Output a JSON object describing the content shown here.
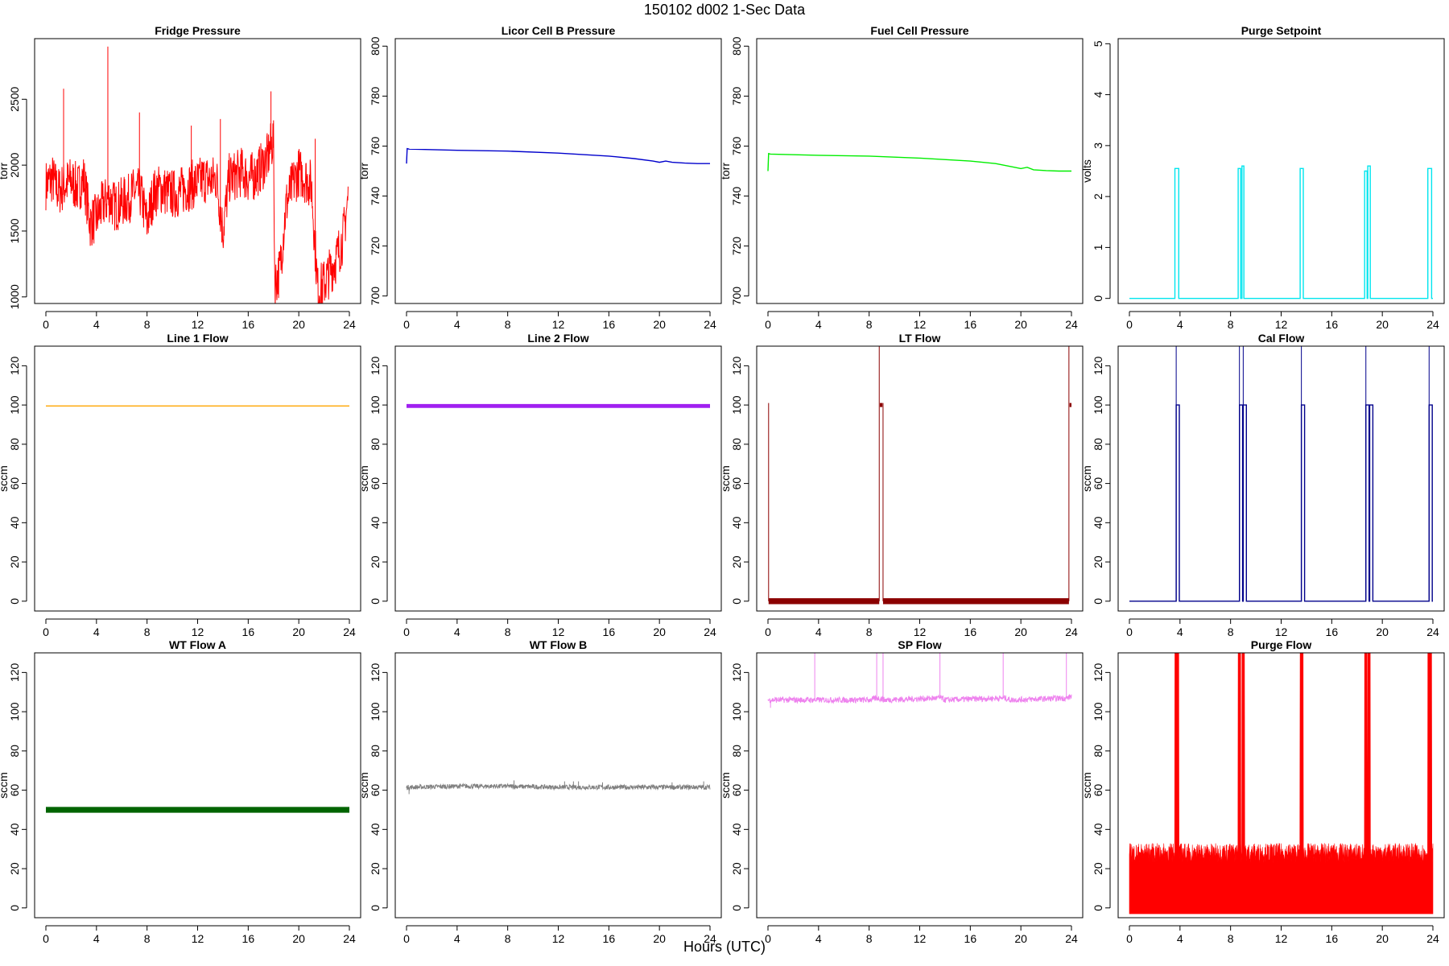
{
  "figure": {
    "title": "150102   d002   1-Sec Data",
    "xlabel": "Hours (UTC)"
  },
  "chart_data": [
    {
      "type": "line",
      "title": "Fridge Pressure",
      "ylabel": "torr",
      "color": "#ff0000",
      "xlim": [
        0,
        24
      ],
      "ylim": [
        950,
        2960
      ],
      "xticks": [
        0,
        4,
        8,
        12,
        16,
        20,
        24
      ],
      "yticks": [
        1000,
        1500,
        2000,
        2500
      ],
      "style": "noisy",
      "x": [
        0,
        0.5,
        1,
        1.5,
        2,
        2.5,
        3,
        3.5,
        4,
        4.5,
        5,
        5.5,
        6,
        6.5,
        7,
        7.5,
        8,
        8.5,
        9,
        9.5,
        10,
        10.5,
        11,
        11.5,
        12,
        12.5,
        13,
        13.5,
        14,
        14.5,
        15,
        15.5,
        16,
        16.5,
        17,
        17.5,
        18,
        18.1,
        18.5,
        19,
        19.5,
        20,
        20.5,
        21,
        21.5,
        22,
        22.5,
        23,
        23.5,
        23.9
      ],
      "values": [
        1850,
        1900,
        1800,
        1850,
        1880,
        1820,
        1900,
        1560,
        1600,
        1700,
        1750,
        1680,
        1720,
        1740,
        1800,
        1780,
        1560,
        1780,
        1820,
        1800,
        1780,
        1790,
        1820,
        1850,
        1860,
        1900,
        1880,
        1900,
        1500,
        1900,
        1920,
        1950,
        1900,
        1920,
        1980,
        2050,
        2200,
        1100,
        1200,
        1700,
        1850,
        1950,
        1900,
        1850,
        1050,
        1100,
        1200,
        1300,
        1450,
        1750
      ],
      "spikes": [
        [
          1.4,
          2580
        ],
        [
          4.9,
          2900
        ],
        [
          7.4,
          2400
        ],
        [
          11.5,
          2300
        ],
        [
          13.8,
          2350
        ],
        [
          17.8,
          2560
        ],
        [
          21.3,
          2200
        ]
      ]
    },
    {
      "type": "line",
      "title": "Licor Cell B Pressure",
      "ylabel": "torr",
      "color": "#0000cc",
      "xlim": [
        0,
        24
      ],
      "ylim": [
        697,
        803
      ],
      "xticks": [
        0,
        4,
        8,
        12,
        16,
        20,
        24
      ],
      "yticks": [
        700,
        720,
        740,
        760,
        780,
        800
      ],
      "style": "line",
      "x": [
        0,
        0.05,
        0.2,
        4,
        8,
        12,
        16,
        18,
        19.5,
        20,
        20.5,
        21,
        22,
        23,
        24
      ],
      "values": [
        753,
        759,
        758.8,
        758.3,
        758,
        757.2,
        756,
        755,
        754,
        753.5,
        754,
        753.5,
        753.2,
        753,
        753
      ]
    },
    {
      "type": "line",
      "title": "Fuel Cell Pressure",
      "ylabel": "torr",
      "color": "#00ee00",
      "xlim": [
        0,
        24
      ],
      "ylim": [
        697,
        803
      ],
      "xticks": [
        0,
        4,
        8,
        12,
        16,
        20,
        24
      ],
      "yticks": [
        700,
        720,
        740,
        760,
        780,
        800
      ],
      "style": "line",
      "x": [
        0,
        0.05,
        0.2,
        4,
        8,
        12,
        16,
        18,
        19.5,
        20,
        20.5,
        21,
        22,
        23,
        24
      ],
      "values": [
        750,
        757,
        756.8,
        756.3,
        756,
        755.2,
        754,
        753,
        751.5,
        751,
        751.5,
        750.5,
        750.2,
        750,
        750
      ]
    },
    {
      "type": "line",
      "title": "Purge Setpoint",
      "ylabel": "volts",
      "color": "#00e5ee",
      "xlim": [
        0,
        24
      ],
      "ylim": [
        -0.1,
        5.1
      ],
      "xticks": [
        0,
        4,
        8,
        12,
        16,
        20,
        24
      ],
      "yticks": [
        0,
        1,
        2,
        3,
        4,
        5
      ],
      "style": "pulses",
      "baseline": 0,
      "pulses": [
        [
          3.6,
          3.9,
          2.55
        ],
        [
          8.6,
          8.8,
          2.55
        ],
        [
          8.9,
          9.05,
          2.6
        ],
        [
          13.5,
          13.75,
          2.55
        ],
        [
          18.6,
          18.8,
          2.5
        ],
        [
          18.85,
          19.05,
          2.6
        ],
        [
          23.6,
          23.9,
          2.55
        ]
      ]
    },
    {
      "type": "line",
      "title": "Line 1 Flow",
      "ylabel": "sccm",
      "color": "#ffa500",
      "xlim": [
        0,
        24
      ],
      "ylim": [
        -5,
        130
      ],
      "xticks": [
        0,
        4,
        8,
        12,
        16,
        20,
        24
      ],
      "yticks": [
        0,
        20,
        40,
        60,
        80,
        100,
        120
      ],
      "style": "line",
      "x": [
        0,
        24
      ],
      "values": [
        99.5,
        99.5
      ]
    },
    {
      "type": "line",
      "title": "Line 2 Flow",
      "ylabel": "sccm",
      "color": "#a020f0",
      "xlim": [
        0,
        24
      ],
      "ylim": [
        -5,
        130
      ],
      "xticks": [
        0,
        4,
        8,
        12,
        16,
        20,
        24
      ],
      "yticks": [
        0,
        20,
        40,
        60,
        80,
        100,
        120
      ],
      "style": "band",
      "x": [
        0,
        24
      ],
      "values": [
        99.5,
        99.5
      ],
      "band_width": 2
    },
    {
      "type": "line",
      "title": "LT Flow",
      "ylabel": "sccm",
      "color": "#8b0000",
      "xlim": [
        0,
        24
      ],
      "ylim": [
        -5,
        130
      ],
      "xticks": [
        0,
        4,
        8,
        12,
        16,
        20,
        24
      ],
      "yticks": [
        0,
        20,
        40,
        60,
        80,
        100,
        120
      ],
      "style": "pulses",
      "baseline": 0,
      "band_width": 3,
      "band_segments": [
        [
          0.05,
          8.8
        ],
        [
          9.1,
          23.8
        ]
      ],
      "high_segments": [
        [
          8.85,
          9.05,
          100
        ],
        [
          23.85,
          24,
          100
        ]
      ],
      "spikes": [
        [
          0.05,
          101
        ],
        [
          8.8,
          130
        ],
        [
          9.1,
          101
        ],
        [
          23.8,
          130
        ]
      ]
    },
    {
      "type": "line",
      "title": "Cal Flow",
      "ylabel": "sccm",
      "color": "#00008b",
      "xlim": [
        0,
        24
      ],
      "ylim": [
        -5,
        130
      ],
      "xticks": [
        0,
        4,
        8,
        12,
        16,
        20,
        24
      ],
      "yticks": [
        0,
        20,
        40,
        60,
        80,
        100,
        120
      ],
      "style": "pulses",
      "baseline": 0,
      "pulses": [
        [
          3.7,
          3.95,
          100
        ],
        [
          8.7,
          8.95,
          100
        ],
        [
          9.0,
          9.25,
          100
        ],
        [
          13.6,
          13.85,
          100
        ],
        [
          18.7,
          18.95,
          100
        ],
        [
          19.0,
          19.25,
          100
        ],
        [
          23.7,
          23.95,
          100
        ]
      ],
      "spikes": [
        [
          3.7,
          130
        ],
        [
          8.7,
          130
        ],
        [
          9.0,
          130
        ],
        [
          13.6,
          130
        ],
        [
          18.7,
          130
        ],
        [
          23.7,
          130
        ]
      ]
    },
    {
      "type": "line",
      "title": "WT Flow A",
      "ylabel": "sccm",
      "color": "#006400",
      "xlim": [
        0,
        24
      ],
      "ylim": [
        -5,
        130
      ],
      "xticks": [
        0,
        4,
        8,
        12,
        16,
        20,
        24
      ],
      "yticks": [
        0,
        20,
        40,
        60,
        80,
        100,
        120
      ],
      "style": "band",
      "x": [
        0,
        24
      ],
      "values": [
        50,
        50
      ],
      "band_width": 3
    },
    {
      "type": "line",
      "title": "WT Flow B",
      "ylabel": "sccm",
      "color": "#808080",
      "xlim": [
        0,
        24
      ],
      "ylim": [
        -5,
        130
      ],
      "xticks": [
        0,
        4,
        8,
        12,
        16,
        20,
        24
      ],
      "yticks": [
        0,
        20,
        40,
        60,
        80,
        100,
        120
      ],
      "style": "noisy",
      "x": [
        0,
        4,
        8,
        12,
        16,
        20,
        24
      ],
      "values": [
        61.5,
        62,
        62,
        61.5,
        61.5,
        61.5,
        61.5
      ],
      "noise": 1.2,
      "spikes": [
        [
          0.2,
          58
        ],
        [
          8.5,
          65
        ],
        [
          12.5,
          64.5
        ],
        [
          13.2,
          64.5
        ],
        [
          13.6,
          64.5
        ],
        [
          15.5,
          64
        ],
        [
          21,
          64
        ],
        [
          23.5,
          64.5
        ]
      ]
    },
    {
      "type": "line",
      "title": "SP Flow",
      "ylabel": "sccm",
      "color": "#ee82ee",
      "xlim": [
        0,
        24
      ],
      "ylim": [
        -5,
        130
      ],
      "xticks": [
        0,
        4,
        8,
        12,
        16,
        20,
        24
      ],
      "yticks": [
        0,
        20,
        40,
        60,
        80,
        100,
        120
      ],
      "style": "noisy",
      "x": [
        0,
        4,
        8,
        8.7,
        9.2,
        13.7,
        14,
        18.7,
        19.2,
        23.7,
        24
      ],
      "values": [
        106,
        106,
        106,
        107,
        106,
        107,
        106,
        107,
        106,
        107,
        108
      ],
      "noise": 1.5,
      "spikes": [
        [
          0.2,
          102
        ],
        [
          3.7,
          130
        ],
        [
          8.6,
          130
        ],
        [
          9.1,
          130
        ],
        [
          13.6,
          130
        ],
        [
          18.6,
          130
        ],
        [
          23.6,
          130
        ]
      ]
    },
    {
      "type": "line",
      "title": "Purge Flow",
      "ylabel": "sccm",
      "color": "#ff0000",
      "xlim": [
        0,
        24
      ],
      "ylim": [
        -5,
        130
      ],
      "xticks": [
        0,
        4,
        8,
        12,
        16,
        20,
        24
      ],
      "yticks": [
        0,
        20,
        40,
        60,
        80,
        100,
        120
      ],
      "style": "fill",
      "baseline": -3,
      "level": 28,
      "pulses": [
        [
          3.6,
          3.9,
          130
        ],
        [
          8.6,
          8.8,
          130
        ],
        [
          8.9,
          9.1,
          130
        ],
        [
          13.5,
          13.75,
          130
        ],
        [
          18.6,
          18.8,
          130
        ],
        [
          18.85,
          19.05,
          130
        ],
        [
          23.6,
          23.9,
          130
        ]
      ]
    }
  ]
}
